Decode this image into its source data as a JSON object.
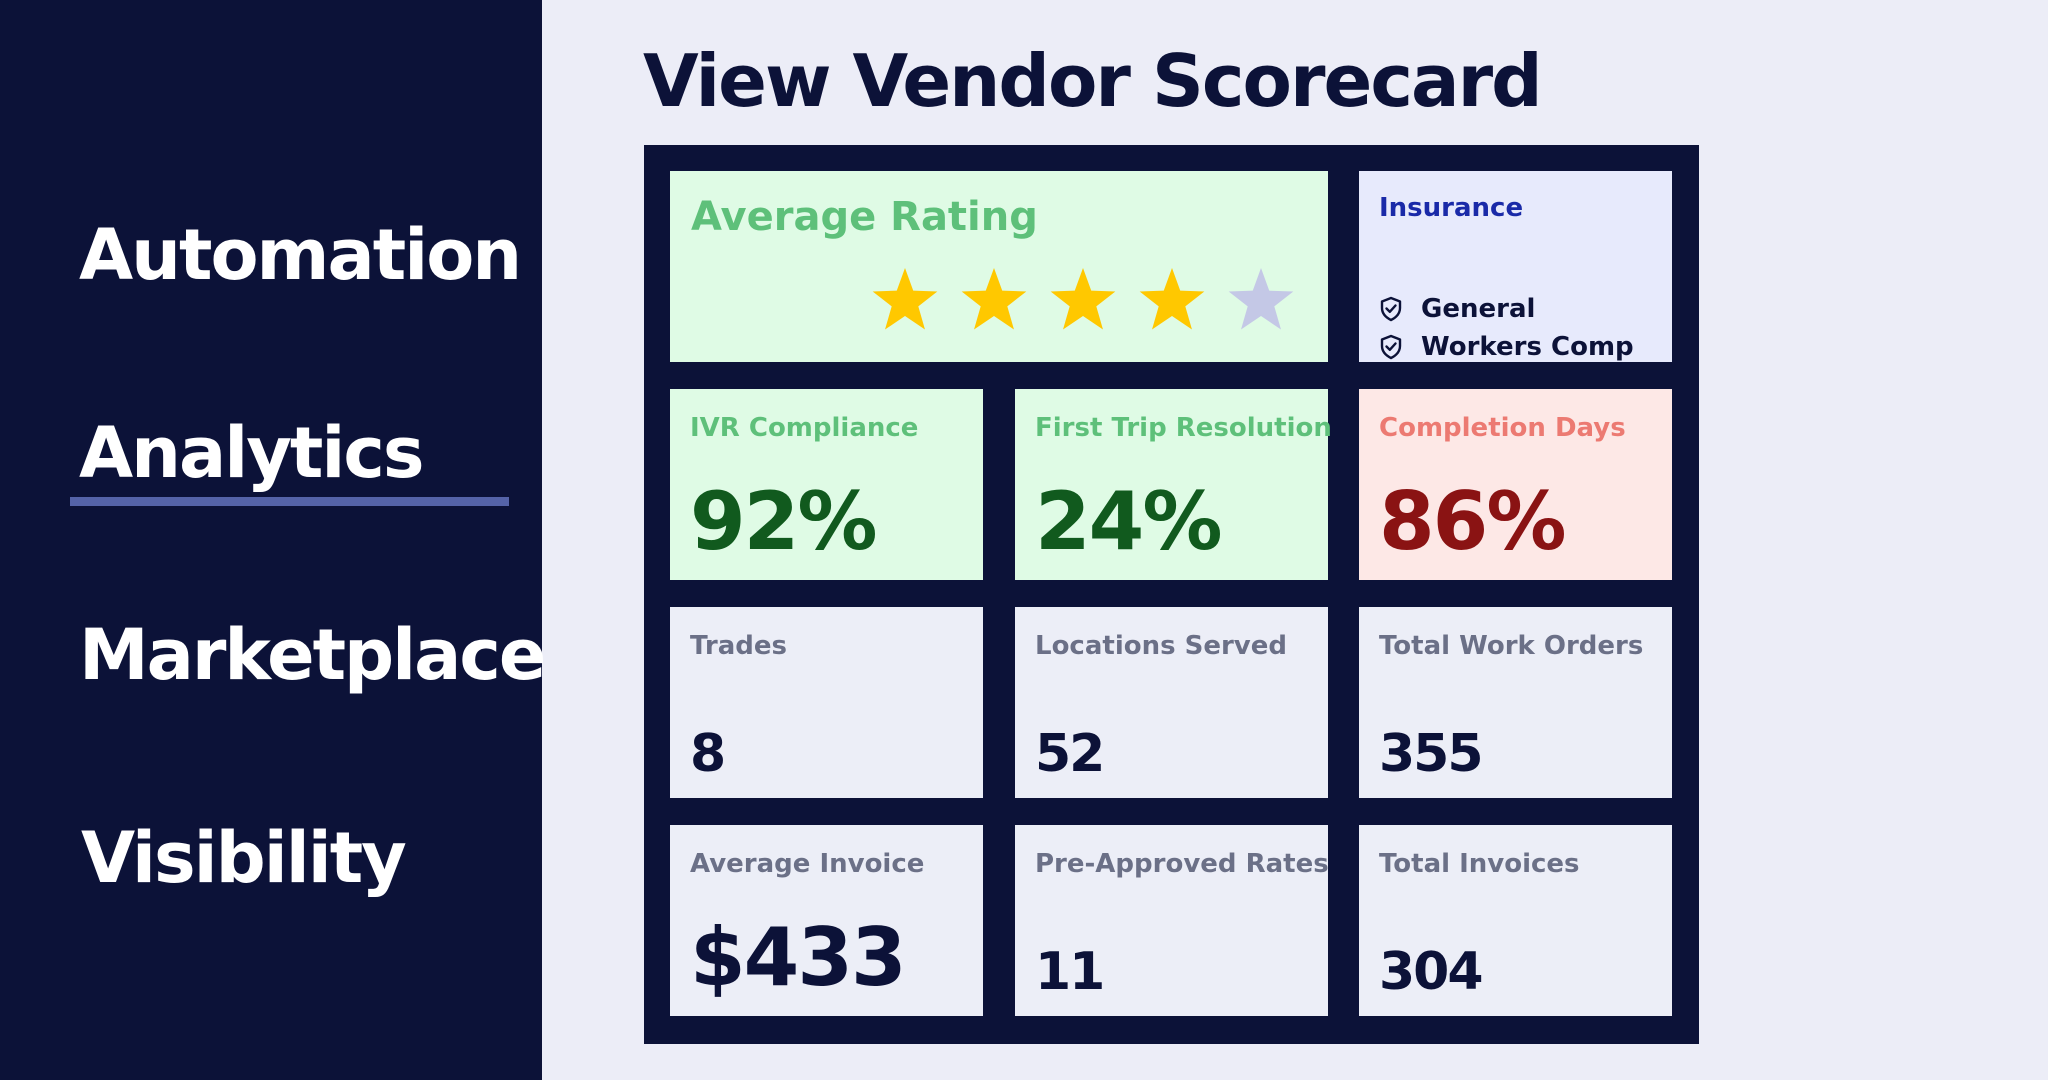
{
  "sidebar": {
    "items": [
      {
        "label": "Automation"
      },
      {
        "label": "Analytics",
        "active": true
      },
      {
        "label": "Marketplace"
      },
      {
        "label": "Visibility"
      }
    ]
  },
  "page": {
    "title": "View Vendor Scorecard"
  },
  "scorecard": {
    "rating": {
      "label": "Average Rating",
      "stars": 4,
      "max_stars": 5
    },
    "insurance": {
      "title": "Insurance",
      "items": [
        {
          "label": "General",
          "icon": "shield-check-icon"
        },
        {
          "label": "Workers Comp",
          "icon": "shield-check-icon"
        }
      ]
    },
    "ivr": {
      "label": "IVR Compliance",
      "value": "92%"
    },
    "first_trip": {
      "label": "First Trip Resolution",
      "value": "24%"
    },
    "completion": {
      "label": "Completion Days",
      "value": "86%"
    },
    "trades": {
      "label": "Trades",
      "value": "8"
    },
    "locations": {
      "label": "Locations Served",
      "value": "52"
    },
    "work_orders": {
      "label": "Total Work Orders",
      "value": "355"
    },
    "avg_invoice": {
      "label": "Average Invoice",
      "value": "$433"
    },
    "rates": {
      "label": "Pre-Approved Rates",
      "value": "11"
    },
    "invoices": {
      "label": "Total Invoices",
      "value": "304"
    }
  },
  "colors": {
    "navy": "#0c1238",
    "star_filled": "#ffc800",
    "star_empty": "#c4c8e6"
  }
}
